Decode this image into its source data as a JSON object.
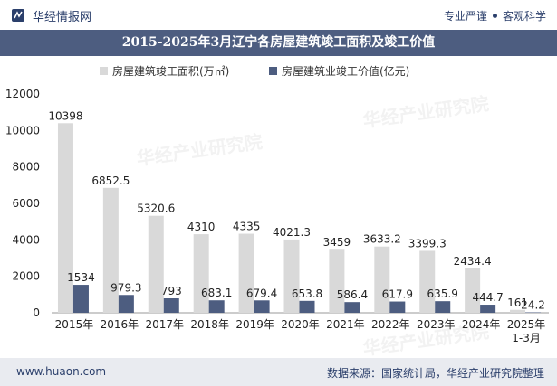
{
  "header": {
    "brand": "华经情报网",
    "tag_left": "专业严谨",
    "tag_right": "客观科学"
  },
  "colors": {
    "title_bg": "#4d5d80",
    "area_series": "#d9d9d9",
    "value_series": "#4d5d80",
    "footer_bg": "#e9ebf0"
  },
  "chart_data": {
    "type": "bar",
    "title": "2015-2025年3月辽宁各房屋建筑竣工面积及竣工价值",
    "categories": [
      "2015年",
      "2016年",
      "2017年",
      "2018年",
      "2019年",
      "2020年",
      "2021年",
      "2022年",
      "2023年",
      "2024年",
      "2025年\n1-3月"
    ],
    "series": [
      {
        "name": "房屋建筑竣工面积(万㎡)",
        "values": [
          10398,
          6852.5,
          5320.6,
          4310,
          4335,
          4021.3,
          3459,
          3633.2,
          3399.3,
          2434.4,
          161
        ]
      },
      {
        "name": "房屋建筑业竣工价值(亿元)",
        "values": [
          1534,
          979.3,
          793,
          683.1,
          679.4,
          653.8,
          586.4,
          617.9,
          635.9,
          444.7,
          24.2
        ]
      }
    ],
    "y_ticks": [
      "0",
      "2000",
      "4000",
      "6000",
      "8000",
      "10000",
      "12000"
    ],
    "ylim": [
      0,
      12000
    ],
    "grid": false,
    "legend_position": "top-center"
  },
  "watermarks": [
    "华经产业研究院",
    "www.huaon.com"
  ],
  "footer": {
    "url": "www.huaon.com",
    "source": "数据来源：国家统计局，华经产业研究院整理"
  }
}
